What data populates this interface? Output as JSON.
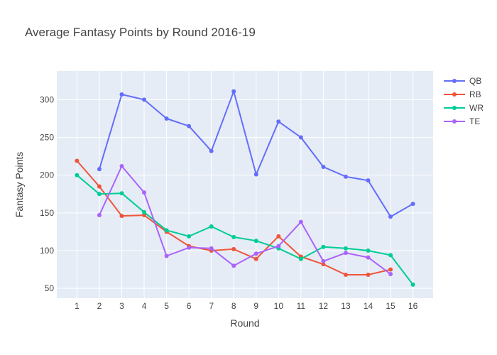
{
  "chart_data": {
    "type": "line",
    "title": "Average Fantasy Points by Round 2016-19",
    "xlabel": "Round",
    "ylabel": "Fantasy Points",
    "xlim": [
      0.1,
      16.9
    ],
    "ylim": [
      37,
      338
    ],
    "x_ticks": [
      1,
      2,
      3,
      4,
      5,
      6,
      7,
      8,
      9,
      10,
      11,
      12,
      13,
      14,
      15,
      16
    ],
    "y_ticks": [
      50,
      100,
      150,
      200,
      250,
      300
    ],
    "grid": true,
    "legend_position": "top-right",
    "series": [
      {
        "name": "QB",
        "color": "#636efa",
        "x": [
          2,
          3,
          4,
          5,
          6,
          7,
          8,
          9,
          10,
          11,
          12,
          13,
          14,
          15,
          16
        ],
        "values": [
          208,
          307,
          300,
          275,
          265,
          232,
          311,
          201,
          271,
          250,
          211,
          198,
          193,
          145,
          162
        ]
      },
      {
        "name": "RB",
        "color": "#ef553b",
        "x": [
          1,
          2,
          3,
          4,
          5,
          6,
          7,
          8,
          9,
          10,
          11,
          12,
          13,
          14,
          15
        ],
        "values": [
          219,
          185,
          146,
          147,
          125,
          106,
          100,
          102,
          89,
          119,
          92,
          82,
          68,
          68,
          75
        ]
      },
      {
        "name": "WR",
        "color": "#00cc96",
        "x": [
          1,
          2,
          3,
          4,
          5,
          6,
          7,
          8,
          9,
          10,
          11,
          12,
          13,
          14,
          15,
          16
        ],
        "values": [
          200,
          175,
          176,
          151,
          127,
          119,
          132,
          118,
          113,
          103,
          89,
          105,
          103,
          100,
          94,
          55
        ]
      },
      {
        "name": "TE",
        "color": "#ab63fa",
        "x": [
          2,
          3,
          4,
          5,
          6,
          7,
          8,
          9,
          10,
          11,
          12,
          13,
          14,
          15
        ],
        "values": [
          147,
          212,
          177,
          93,
          104,
          103,
          80,
          96,
          106,
          138,
          86,
          97,
          91,
          69
        ]
      }
    ]
  }
}
